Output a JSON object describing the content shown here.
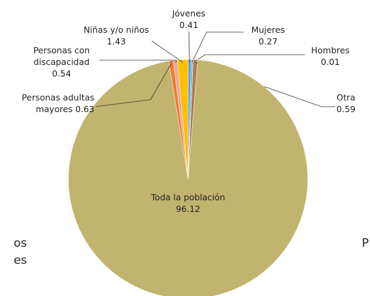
{
  "chart_data": {
    "type": "pie",
    "categories": [
      "Jóvenes",
      "Mujeres",
      "Hombres",
      "Otra",
      "Toda la población",
      "Personas adultas mayores",
      "Personas con discapacidad",
      "Niñas y/o niños"
    ],
    "values": [
      0.41,
      0.27,
      0.01,
      0.59,
      96.12,
      0.63,
      0.54,
      1.43
    ],
    "colors": [
      "#5b9bd5",
      "#6fb7c9",
      "#a5a5a5",
      "#b5764e",
      "#c0b46e",
      "#ed7d31",
      "#e8a7a0",
      "#ffc000"
    ],
    "annotations": [
      "os",
      "es",
      "P"
    ]
  }
}
